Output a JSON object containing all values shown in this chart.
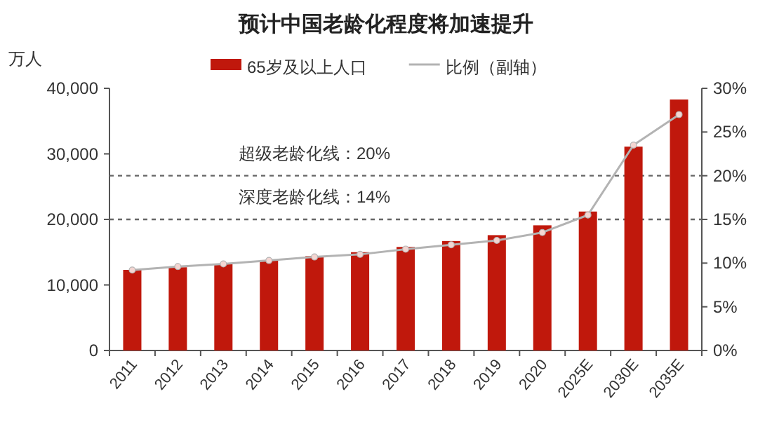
{
  "chart_data": {
    "type": "bar",
    "title": "预计中国老龄化程度将加速提升",
    "ylabel": "万人",
    "categories": [
      "2011",
      "2012",
      "2013",
      "2014",
      "2015",
      "2016",
      "2017",
      "2018",
      "2019",
      "2020",
      "2025E",
      "2030E",
      "2035E"
    ],
    "series": [
      {
        "name": "65岁及以上人口",
        "color": "#c0180c",
        "values": [
          12300,
          12700,
          13200,
          13800,
          14400,
          15000,
          15800,
          16700,
          17600,
          19100,
          21200,
          31100,
          38300
        ]
      },
      {
        "name": "比例（副轴）",
        "type": "line",
        "axis": "y2",
        "color": "#b3b3b3",
        "marker": "circle",
        "values": [
          9.2,
          9.6,
          9.9,
          10.3,
          10.7,
          11.0,
          11.6,
          12.1,
          12.6,
          13.5,
          15.5,
          23.5,
          27.0
        ]
      }
    ],
    "ylim": [
      0,
      40000
    ],
    "yticks": [
      0,
      {
        "value": 10000,
        "label": "10,000"
      },
      {
        "value": 20000,
        "label": "20,000"
      },
      {
        "value": 30000,
        "label": "30,000"
      },
      {
        "value": 40000,
        "label": "40,000"
      }
    ],
    "y2lim": [
      0,
      30
    ],
    "y2ticks": [
      {
        "value": 0,
        "label": "0%"
      },
      {
        "value": 5,
        "label": "5%"
      },
      {
        "value": 10,
        "label": "10%"
      },
      {
        "value": 15,
        "label": "15%"
      },
      {
        "value": 20,
        "label": "20%"
      },
      {
        "value": 25,
        "label": "25%"
      },
      {
        "value": 30,
        "label": "30%"
      }
    ],
    "ref_lines": [
      {
        "axis": "y2",
        "value": 20,
        "label": "超级老龄化线：20%",
        "color": "#666666",
        "line_style": "dashed"
      },
      {
        "axis": "y2",
        "value": 15,
        "label": "深度老龄化线：14%",
        "color": "#666666",
        "line_style": "dashed"
      }
    ],
    "legend": "top",
    "grid": false
  }
}
